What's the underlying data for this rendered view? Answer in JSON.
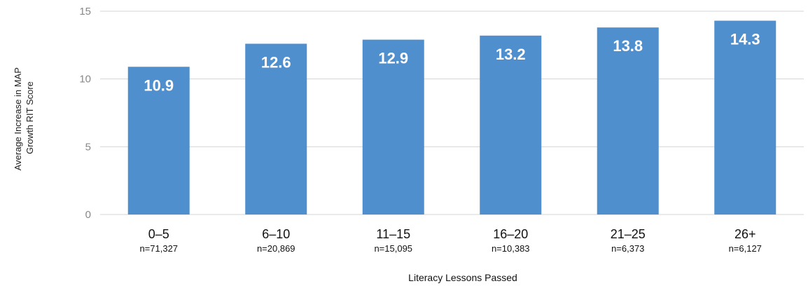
{
  "chart_data": {
    "type": "bar",
    "categories": [
      "0–5",
      "6–10",
      "11–15",
      "16–20",
      "21–25",
      "26+"
    ],
    "category_sublabels": [
      "n=71,327",
      "n=20,869",
      "n=15,095",
      "n=10,383",
      "n=6,373",
      "n=6,127"
    ],
    "values": [
      10.9,
      12.6,
      12.9,
      13.2,
      13.8,
      14.3
    ],
    "data_labels": [
      "10.9",
      "12.6",
      "12.9",
      "13.2",
      "13.8",
      "14.3"
    ],
    "xlabel": "Literacy Lessons Passed",
    "ylabel_lines": [
      "Average Increase in  MAP",
      "Growth RIT Score"
    ],
    "ylim": [
      0,
      15
    ],
    "yticks": [
      "0",
      "5",
      "10",
      "15"
    ],
    "grid": true,
    "bar_color": "#4f8fcd",
    "grid_color": "#d4d4d4"
  }
}
